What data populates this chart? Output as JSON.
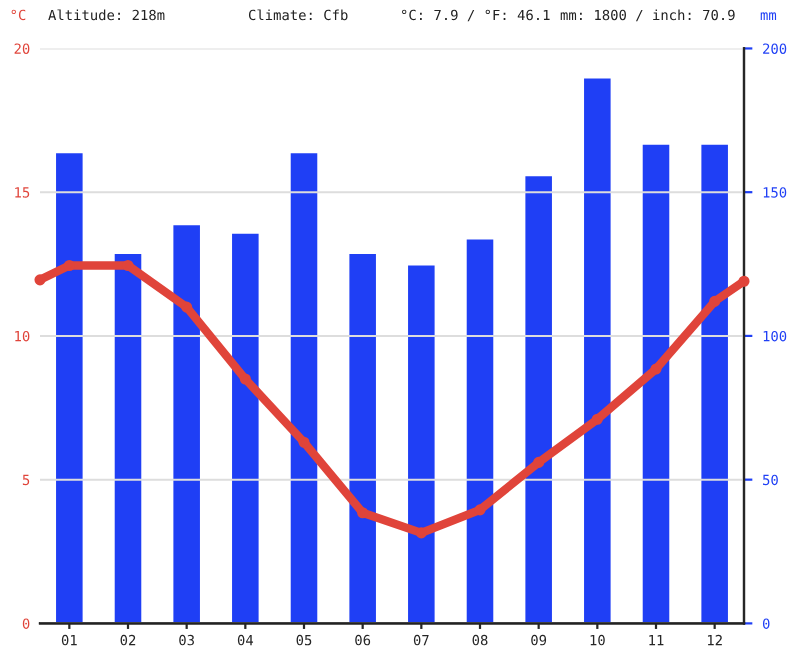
{
  "chart_data": {
    "type": "bar",
    "annotations": [
      "Altitude: 218m",
      "Climate: Cfb",
      "°C: 7.9 / °F: 46.1",
      "mm: 1800 / inch: 70.9"
    ],
    "ylabel": "°C",
    "y2label": "mm",
    "x": [
      1,
      2,
      3,
      4,
      5,
      6,
      7,
      8,
      9,
      10,
      11,
      12
    ],
    "xlim": [
      0.5,
      12.5
    ],
    "xticks": [
      {
        "value": 1,
        "label": "01"
      },
      {
        "value": 2,
        "label": "02"
      },
      {
        "value": 3,
        "label": "03"
      },
      {
        "value": 4,
        "label": "04"
      },
      {
        "value": 5,
        "label": "05"
      },
      {
        "value": 6,
        "label": "06"
      },
      {
        "value": 7,
        "label": "07"
      },
      {
        "value": 8,
        "label": "08"
      },
      {
        "value": 9,
        "label": "09"
      },
      {
        "value": 10,
        "label": "10"
      },
      {
        "value": 11,
        "label": "11"
      },
      {
        "value": 12,
        "label": "12"
      }
    ],
    "ylim": [
      0,
      20
    ],
    "yticks": [
      0,
      5,
      10,
      15,
      20
    ],
    "y2lim": [
      0,
      200
    ],
    "y2ticks": [
      0,
      50,
      100,
      150,
      200
    ],
    "grid": "y",
    "legend": false,
    "series": [
      {
        "axis": "y2",
        "color": "#1f3ff5",
        "values": [
          164,
          129,
          139,
          136,
          164,
          129,
          125,
          134,
          156,
          190,
          167,
          167
        ]
      },
      {
        "type": "line",
        "axis": "y",
        "color": "#e0443a",
        "marker": "circle",
        "line_style": "solid",
        "x": [
          0.5,
          1,
          2,
          3,
          4,
          5,
          6,
          7,
          8,
          9,
          10,
          11,
          12,
          12.5
        ],
        "values": [
          11.95,
          12.45,
          12.45,
          11.0,
          8.5,
          6.3,
          3.85,
          3.15,
          3.95,
          5.6,
          7.1,
          8.85,
          11.2,
          11.9
        ]
      }
    ]
  }
}
